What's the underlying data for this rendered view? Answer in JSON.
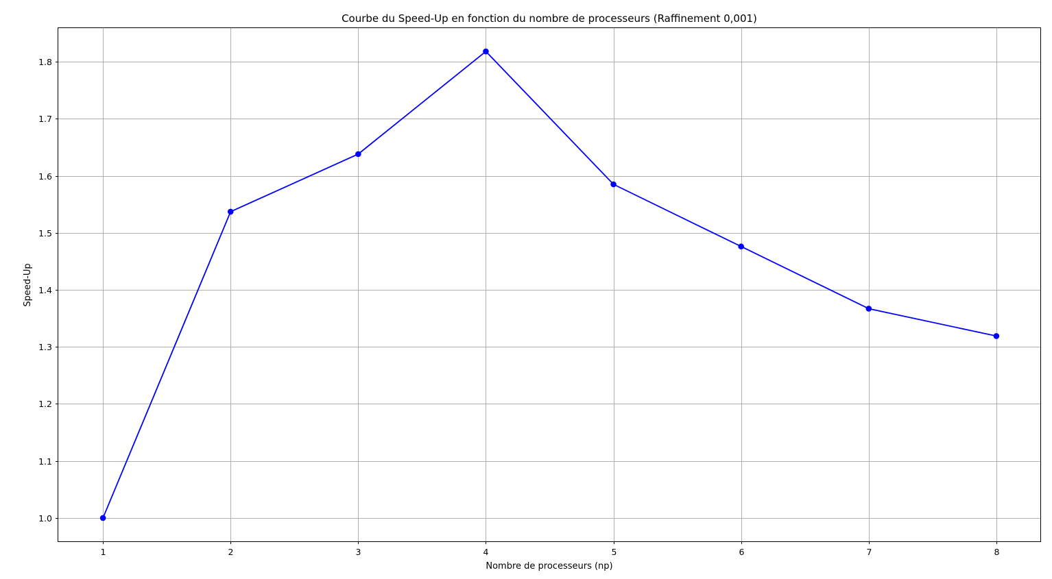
{
  "chart_data": {
    "type": "line",
    "title": "Courbe du Speed-Up en fonction du nombre de processeurs (Raffinement 0,001)",
    "xlabel": "Nombre de processeurs (np)",
    "ylabel": "Speed-Up",
    "x": [
      1,
      2,
      3,
      4,
      5,
      6,
      7,
      8
    ],
    "series": [
      {
        "values": [
          1.0,
          1.537,
          1.638,
          1.818,
          1.585,
          1.476,
          1.367,
          1.319
        ],
        "color": "#0000ff",
        "marker": "circle"
      }
    ],
    "xticks": [
      "1",
      "2",
      "3",
      "4",
      "5",
      "6",
      "7",
      "8"
    ],
    "yticks": [
      "1.0",
      "1.1",
      "1.2",
      "1.3",
      "1.4",
      "1.5",
      "1.6",
      "1.7",
      "1.8"
    ],
    "xlim": [
      0.65,
      8.35
    ],
    "ylim": [
      0.9591,
      1.8589
    ],
    "grid": true
  }
}
